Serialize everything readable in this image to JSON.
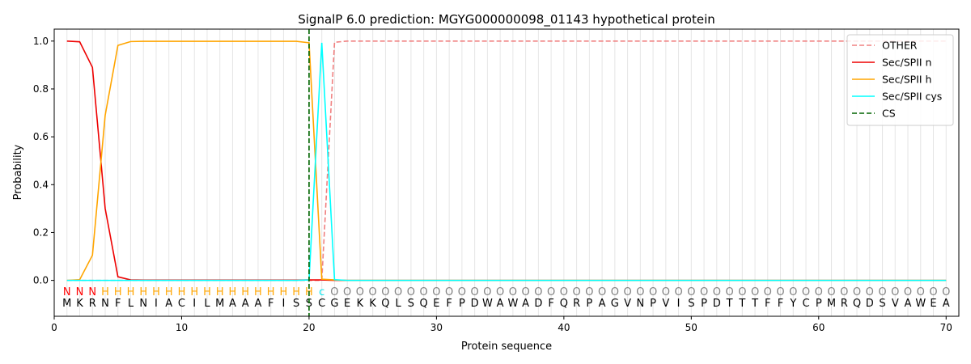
{
  "chart_data": {
    "type": "line",
    "title": "SignalP 6.0 prediction: MGYG000000098_01143 hypothetical protein",
    "xlabel": "Protein sequence",
    "ylabel": "Probability",
    "xlim": [
      0,
      71
    ],
    "ylim": [
      -0.15,
      1.05
    ],
    "x_ticks": [
      0,
      10,
      20,
      30,
      40,
      50,
      60,
      70
    ],
    "y_ticks": [
      0.0,
      0.2,
      0.4,
      0.6,
      0.8,
      1.0
    ],
    "legend_position": "top-right",
    "grid": "vertical lines at every residue",
    "sequence": [
      "M",
      "K",
      "R",
      "N",
      "F",
      "L",
      "N",
      "I",
      "A",
      "C",
      "I",
      "L",
      "M",
      "A",
      "A",
      "A",
      "F",
      "I",
      "S",
      "S",
      "C",
      "G",
      "E",
      "K",
      "K",
      "Q",
      "L",
      "S",
      "Q",
      "E",
      "F",
      "P",
      "D",
      "W",
      "A",
      "W",
      "A",
      "D",
      "F",
      "Q",
      "R",
      "P",
      "A",
      "G",
      "V",
      "N",
      "P",
      "V",
      "I",
      "S",
      "P",
      "D",
      "T",
      "T",
      "T",
      "F",
      "F",
      "Y",
      "C",
      "P",
      "M",
      "R",
      "Q",
      "D",
      "S",
      "V",
      "A",
      "W",
      "E",
      "A"
    ],
    "labels": [
      "N",
      "N",
      "N",
      "H",
      "H",
      "H",
      "H",
      "H",
      "H",
      "H",
      "H",
      "H",
      "H",
      "H",
      "H",
      "H",
      "H",
      "H",
      "H",
      "H",
      "c",
      "O",
      "O",
      "O",
      "O",
      "O",
      "O",
      "O",
      "O",
      "O",
      "O",
      "O",
      "O",
      "O",
      "O",
      "O",
      "O",
      "O",
      "O",
      "O",
      "O",
      "O",
      "O",
      "O",
      "O",
      "O",
      "O",
      "O",
      "O",
      "O",
      "O",
      "O",
      "O",
      "O",
      "O",
      "O",
      "O",
      "O",
      "O",
      "O",
      "O",
      "O",
      "O",
      "O",
      "O",
      "O",
      "O",
      "O",
      "O",
      "O"
    ],
    "label_colors": {
      "N": "#ff0000",
      "H": "#ffa500",
      "c": "#00e5ee",
      "O": "#808080"
    },
    "series": [
      {
        "name": "OTHER",
        "color": "#f08080",
        "dash": "dashed",
        "values": [
          0,
          0,
          0,
          0,
          0,
          0,
          0,
          0,
          0,
          0,
          0,
          0,
          0,
          0,
          0,
          0,
          0,
          0,
          0,
          0,
          0,
          0.995,
          1,
          1,
          1,
          1,
          1,
          1,
          1,
          1,
          1,
          1,
          1,
          1,
          1,
          1,
          1,
          1,
          1,
          1,
          1,
          1,
          1,
          1,
          1,
          1,
          1,
          1,
          1,
          1,
          1,
          1,
          1,
          1,
          1,
          1,
          1,
          1,
          1,
          1,
          1,
          1,
          1,
          1,
          1,
          1,
          1,
          1,
          1,
          1
        ]
      },
      {
        "name": "Sec/SPII n",
        "color": "#ee0000",
        "dash": "solid",
        "values": [
          1.0,
          0.997,
          0.89,
          0.3,
          0.015,
          0.002,
          0.001,
          0.001,
          0.001,
          0.001,
          0.001,
          0.001,
          0.001,
          0.001,
          0.001,
          0.001,
          0.001,
          0.001,
          0.001,
          0.002,
          0.002,
          0,
          0,
          0,
          0,
          0,
          0,
          0,
          0,
          0,
          0,
          0,
          0,
          0,
          0,
          0,
          0,
          0,
          0,
          0,
          0,
          0,
          0,
          0,
          0,
          0,
          0,
          0,
          0,
          0,
          0,
          0,
          0,
          0,
          0,
          0,
          0,
          0,
          0,
          0,
          0,
          0,
          0,
          0,
          0,
          0,
          0,
          0,
          0,
          0
        ]
      },
      {
        "name": "Sec/SPII h",
        "color": "#ffa500",
        "dash": "solid",
        "values": [
          0,
          0.003,
          0.105,
          0.69,
          0.982,
          0.998,
          0.999,
          0.999,
          0.999,
          0.999,
          0.999,
          0.999,
          0.999,
          0.999,
          0.999,
          0.999,
          0.999,
          0.999,
          0.999,
          0.993,
          0.005,
          0.002,
          0,
          0,
          0,
          0,
          0,
          0,
          0,
          0,
          0,
          0,
          0,
          0,
          0,
          0,
          0,
          0,
          0,
          0,
          0,
          0,
          0,
          0,
          0,
          0,
          0,
          0,
          0,
          0,
          0,
          0,
          0,
          0,
          0,
          0,
          0,
          0,
          0,
          0,
          0,
          0,
          0,
          0,
          0,
          0,
          0,
          0,
          0,
          0
        ]
      },
      {
        "name": "Sec/SPII cys",
        "color": "#00ffff",
        "dash": "solid",
        "values": [
          0,
          0,
          0,
          0,
          0,
          0,
          0,
          0,
          0,
          0,
          0,
          0,
          0,
          0,
          0,
          0,
          0,
          0,
          0,
          0.002,
          0.993,
          0.003,
          0,
          0,
          0,
          0,
          0,
          0,
          0,
          0,
          0,
          0,
          0,
          0,
          0,
          0,
          0,
          0,
          0,
          0,
          0,
          0,
          0,
          0,
          0,
          0,
          0,
          0,
          0,
          0,
          0,
          0,
          0,
          0,
          0,
          0,
          0,
          0,
          0,
          0,
          0,
          0,
          0,
          0,
          0,
          0,
          0,
          0,
          0,
          0
        ]
      }
    ],
    "cs": {
      "name": "CS",
      "color": "#006400",
      "dash": "dashed",
      "x": 20
    }
  }
}
